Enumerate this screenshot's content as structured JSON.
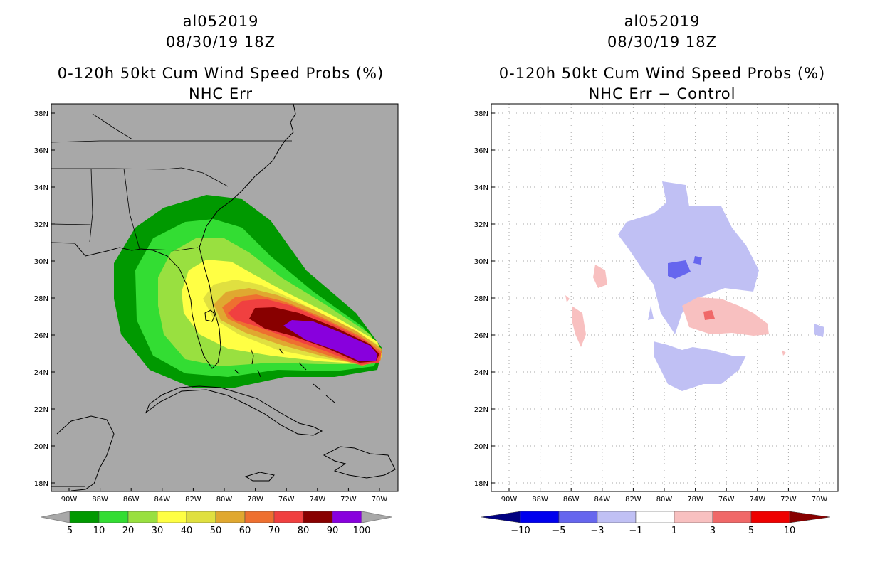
{
  "left_panel": {
    "storm_id": "al052019",
    "datetime": "08/30/19 18Z",
    "title": "0-120h 50kt Cum Wind Speed Probs (%)",
    "subtitle": "NHC Err",
    "background_color": "#A8A8A8",
    "colorbar": {
      "labels": [
        "5",
        "10",
        "20",
        "30",
        "40",
        "50",
        "60",
        "70",
        "80",
        "90",
        "100"
      ],
      "colors": [
        "#009900",
        "#33DD33",
        "#99E040",
        "#FFFF44",
        "#E0E040",
        "#E0A830",
        "#EE7030",
        "#F04040",
        "#880000",
        "#8800DD"
      ]
    }
  },
  "right_panel": {
    "storm_id": "al052019",
    "datetime": "08/30/19 18Z",
    "title": "0-120h 50kt Cum Wind Speed Probs (%)",
    "subtitle": "NHC Err − Control",
    "background_color": "#FFFFFF",
    "colorbar": {
      "labels": [
        "−10",
        "−5",
        "−3",
        "−1",
        "1",
        "3",
        "5",
        "10"
      ],
      "colors": [
        "#000080",
        "#0000EE",
        "#6666EE",
        "#C0C0F4",
        "#FFFFFF",
        "#F8C0C0",
        "#F06868",
        "#EE0000",
        "#880000"
      ]
    }
  },
  "axes": {
    "lat_labels": [
      "38N",
      "36N",
      "34N",
      "32N",
      "30N",
      "28N",
      "26N",
      "24N",
      "22N",
      "20N",
      "18N"
    ],
    "lon_labels": [
      "90W",
      "88W",
      "86W",
      "84W",
      "82W",
      "80W",
      "78W",
      "76W",
      "74W",
      "72W",
      "70W"
    ]
  }
}
